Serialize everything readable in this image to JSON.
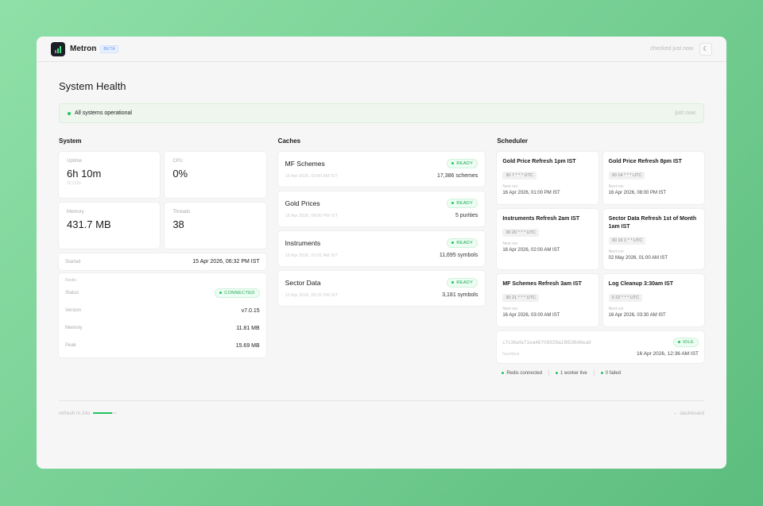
{
  "app": {
    "name": "Metron",
    "badge": "BETA",
    "checked": "checked just now",
    "theme_icon": "moon-icon"
  },
  "page": {
    "title": "System Health"
  },
  "banner": {
    "status": "All systems operational",
    "time": "just now"
  },
  "system": {
    "title": "System",
    "stats": [
      {
        "label": "Uptime",
        "value": "6h 10m",
        "sub": "22,212s"
      },
      {
        "label": "CPU",
        "value": "0%"
      },
      {
        "label": "Memory",
        "value": "431.7 MB"
      },
      {
        "label": "Threads",
        "value": "38"
      }
    ],
    "started": {
      "label": "Started",
      "value": "15 Apr 2026, 06:32 PM IST"
    },
    "redis": {
      "title": "Redis",
      "rows": [
        {
          "label": "Status",
          "value": "CONNECTED"
        },
        {
          "label": "Version",
          "value": "v7.0.15"
        },
        {
          "label": "Memory",
          "value": "11.81 MB"
        },
        {
          "label": "Peak",
          "value": "15.69 MB"
        }
      ]
    }
  },
  "caches": {
    "title": "Caches",
    "items": [
      {
        "name": "MF Schemes",
        "status": "READY",
        "date": "15 Apr 2026, 03:00 AM IST",
        "count": "17,386 schemes"
      },
      {
        "name": "Gold Prices",
        "status": "READY",
        "date": "15 Apr 2026, 08:00 PM IST",
        "count": "5 purities"
      },
      {
        "name": "Instruments",
        "status": "READY",
        "date": "15 Apr 2026, 02:01 AM IST",
        "count": "11,695 symbols"
      },
      {
        "name": "Sector Data",
        "status": "READY",
        "date": "12 Apr 2026, 05:32 PM IST",
        "count": "3,181 symbols"
      }
    ]
  },
  "scheduler": {
    "title": "Scheduler",
    "next_label": "Next run",
    "jobs": [
      {
        "name": "Gold Price Refresh 1pm IST",
        "cron": "30 7 * * * UTC",
        "next": "16 Apr 2026, 01:00 PM IST"
      },
      {
        "name": "Gold Price Refresh 8pm IST",
        "cron": "30 14 * * * UTC",
        "next": "16 Apr 2026, 08:00 PM IST"
      },
      {
        "name": "Instruments Refresh 2am IST",
        "cron": "30 20 * * * UTC",
        "next": "16 Apr 2026, 02:00 AM IST"
      },
      {
        "name": "Sector Data Refresh 1st of Month 1am IST",
        "cron": "30 19 1 * * UTC",
        "next": "02 May 2026, 01:00 AM IST"
      },
      {
        "name": "MF Schemes Refresh 3am IST",
        "cron": "30 21 * * * UTC",
        "next": "16 Apr 2026, 03:00 AM IST"
      },
      {
        "name": "Log Cleanup 3:30am IST",
        "cron": "0 22 * * * UTC",
        "next": "16 Apr 2026, 03:30 AM IST"
      }
    ],
    "worker": {
      "id": "c7c36efa71ea46708929a1f853648ea9",
      "status": "IDLE",
      "heartbeat_label": "heartbeat",
      "heartbeat": "16 Apr 2026, 12:36 AM IST"
    },
    "footer": [
      "Redis connected",
      "1 worker live",
      "0 failed"
    ]
  },
  "bottom": {
    "refresh": "refresh in 24s",
    "refresh_progress": 0.8,
    "back": "← dashboard"
  },
  "colors": {
    "accent": "#22c55e",
    "badge_bg": "#ecfdf3"
  }
}
